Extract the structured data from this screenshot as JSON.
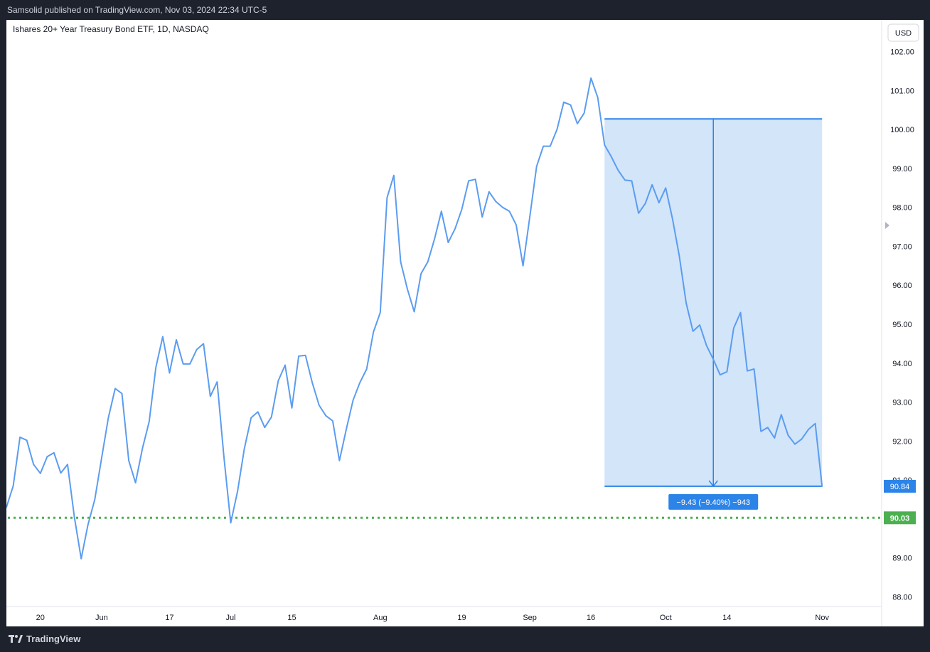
{
  "header": {
    "publish_text": "Samsolid published on TradingView.com, Nov 03, 2024 22:34 UTC-5"
  },
  "chart": {
    "symbol_title": "Ishares 20+ Year Treasury Bond ETF, 1D, NASDAQ",
    "currency_button": "USD",
    "measure_label": "−9.43 (−9.40%) −943",
    "last_price_label": "90.84",
    "alert_price_label": "90.03"
  },
  "footer": {
    "brand": "TradingView"
  },
  "colors": {
    "line": "#5b9cf0",
    "measure_fill": "#d2e5f9",
    "measure_stroke": "#2c84e8",
    "alert_line": "#4caf50",
    "background_dark": "#1e222d",
    "chart_bg": "#ffffff"
  },
  "chart_data": {
    "type": "line",
    "title": "Ishares 20+ Year Treasury Bond ETF, 1D, NASDAQ",
    "xlabel": "",
    "ylabel": "",
    "currency": "USD",
    "ylim": [
      87.7,
      102.3
    ],
    "y_ticks": [
      88,
      89,
      90,
      91,
      92,
      93,
      94,
      95,
      96,
      97,
      98,
      99,
      100,
      101,
      102
    ],
    "y_tick_labels": [
      "88.00",
      "89.00",
      "90.00",
      "91.00",
      "92.00",
      "93.00",
      "94.00",
      "95.00",
      "96.00",
      "97.00",
      "98.00",
      "99.00",
      "100.00",
      "101.00",
      "102.00"
    ],
    "x_ticks": [
      {
        "label": "20",
        "index": 5
      },
      {
        "label": "Jun",
        "index": 14
      },
      {
        "label": "17",
        "index": 24
      },
      {
        "label": "Jul",
        "index": 33
      },
      {
        "label": "15",
        "index": 42
      },
      {
        "label": "Aug",
        "index": 55
      },
      {
        "label": "19",
        "index": 67
      },
      {
        "label": "Sep",
        "index": 77
      },
      {
        "label": "16",
        "index": 86
      },
      {
        "label": "Oct",
        "index": 97
      },
      {
        "label": "14",
        "index": 106
      },
      {
        "label": "Nov",
        "index": 120
      }
    ],
    "grid": false,
    "series": [
      {
        "values": [
          90.3,
          90.85,
          92.1,
          92.02,
          91.4,
          91.17,
          91.6,
          91.7,
          91.18,
          91.4,
          90.05,
          88.98,
          89.85,
          90.5,
          91.55,
          92.6,
          93.35,
          93.22,
          91.5,
          90.93,
          91.8,
          92.5,
          93.9,
          94.68,
          93.75,
          94.6,
          93.98,
          93.98,
          94.35,
          94.5,
          93.15,
          93.52,
          91.6,
          89.9,
          90.7,
          91.8,
          92.6,
          92.75,
          92.35,
          92.62,
          93.55,
          93.95,
          92.85,
          94.18,
          94.2,
          93.5,
          92.92,
          92.65,
          92.52,
          91.5,
          92.3,
          93.05,
          93.5,
          93.85,
          94.8,
          95.3,
          98.25,
          98.82,
          96.6,
          95.9,
          95.32,
          96.3,
          96.6,
          97.2,
          97.9,
          97.1,
          97.45,
          97.95,
          98.68,
          98.72,
          97.75,
          98.4,
          98.15,
          98.0,
          97.9,
          97.55,
          96.5,
          97.75,
          99.05,
          99.57,
          99.57,
          100.0,
          100.7,
          100.63,
          100.15,
          100.42,
          101.32,
          100.82,
          99.6,
          99.3,
          98.95,
          98.7,
          98.68,
          97.85,
          98.1,
          98.58,
          98.12,
          98.5,
          97.7,
          96.75,
          95.55,
          94.82,
          94.98,
          94.45,
          94.1,
          93.7,
          93.78,
          94.9,
          95.3,
          93.8,
          93.85,
          92.25,
          92.35,
          92.08,
          92.68,
          92.15,
          91.92,
          92.05,
          92.3,
          92.45,
          90.84
        ]
      }
    ],
    "measure": {
      "start_index": 88,
      "end_index": 120,
      "from_price": 100.27,
      "to_price": 90.84,
      "label": "−9.43 (−9.40%) −943"
    },
    "last_price": 90.84,
    "alert_line_price": 90.03
  }
}
